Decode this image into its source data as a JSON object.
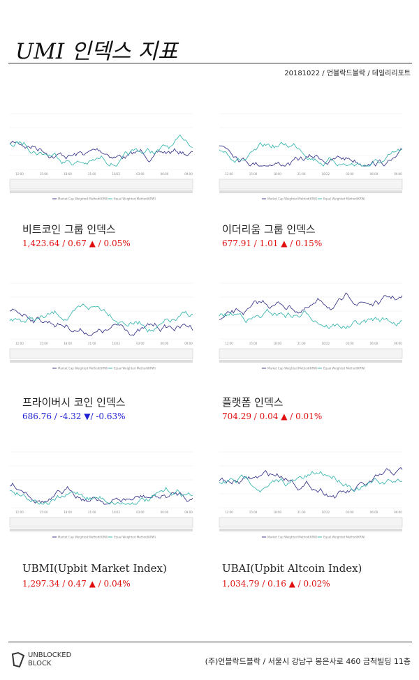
{
  "header": {
    "title": "UMI 인덱스 지표",
    "meta": "20181022 / 언블락드블락 / 데일리리포트"
  },
  "panels": [
    {
      "name": "비트코인 그룹 인덱스",
      "stats": "1,423.64 / 0.67 ▲ / 0.05%",
      "direction": "up"
    },
    {
      "name": "이더리움 그룹 인덱스",
      "stats": "677.91 / 1.01 ▲ / 0.15%",
      "direction": "up"
    },
    {
      "name": "프라이버시 코인 인덱스",
      "stats": "686.76 / -4.32 ▼/ -0.63%",
      "direction": "down"
    },
    {
      "name": "플랫폼 인덱스",
      "stats": "704.29 / 0.04 ▲ / 0.01%",
      "direction": "up"
    },
    {
      "name": "UBMI(Upbit Market Index)",
      "stats": "1,297.34 / 0.47 ▲ / 0.04%",
      "direction": "up"
    },
    {
      "name": "UBAI(Upbit Altcoin Index)",
      "stats": "1,034.79 / 0.16 ▲ / 0.02%",
      "direction": "up"
    }
  ],
  "chart_xticks": [
    "12:00",
    "15:00",
    "18:00",
    "21:00",
    "10/22",
    "03:00",
    "06:00",
    "09:00"
  ],
  "legend": [
    "Market Cap Weighted Method(KRW)",
    "Equal Weighted Method(KRW)"
  ],
  "footer": {
    "logo_top": "UNBLOCKED",
    "logo_bottom": "BLOCK",
    "address": "(주)언블락드블락 / 서울시 강남구 봉은사로 460 금척빌딩 11층"
  }
}
